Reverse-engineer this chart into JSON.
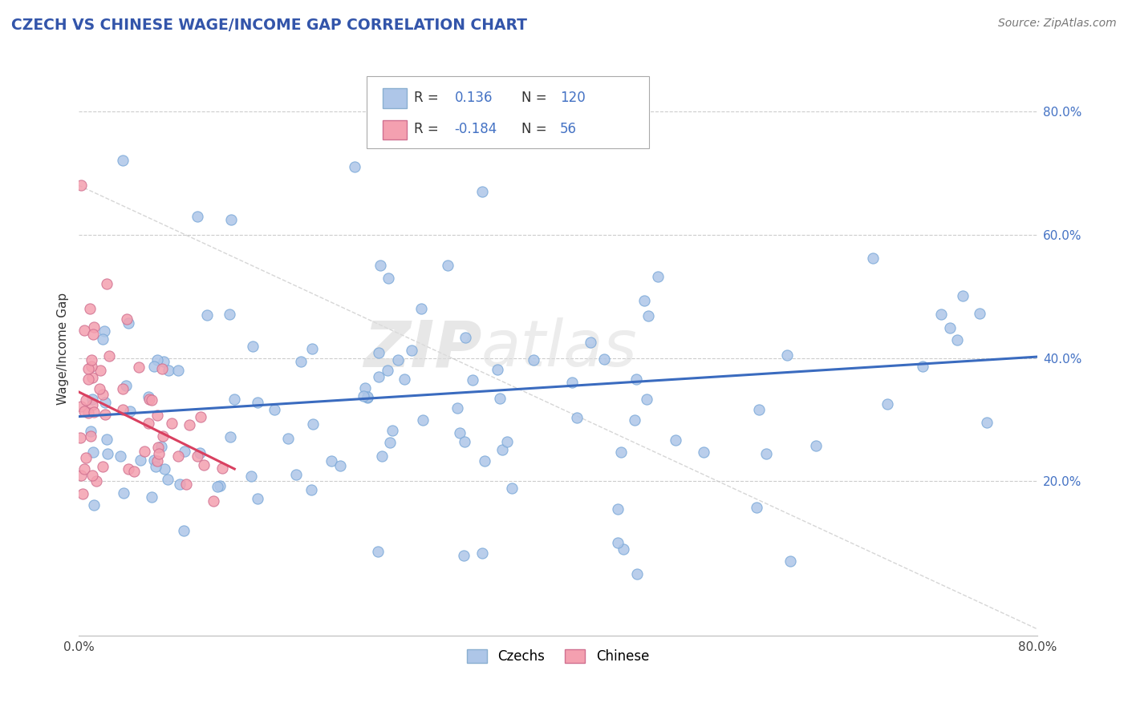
{
  "title": "CZECH VS CHINESE WAGE/INCOME GAP CORRELATION CHART",
  "source": "Source: ZipAtlas.com",
  "ylabel": "Wage/Income Gap",
  "xlim": [
    0,
    0.8
  ],
  "ylim": [
    -0.05,
    0.88
  ],
  "yticks": [
    0.2,
    0.4,
    0.6,
    0.8
  ],
  "ytick_labels": [
    "20.0%",
    "40.0%",
    "60.0%",
    "80.0%"
  ],
  "czech_color": "#aec6e8",
  "chinese_color": "#f4a0b0",
  "czech_R": 0.136,
  "czech_N": 120,
  "chinese_R": -0.184,
  "chinese_N": 56,
  "blue_line_color": "#3a6bbf",
  "pink_line_color": "#d94060",
  "gray_line_color": "#cccccc",
  "legend_blue_label": "Czechs",
  "legend_pink_label": "Chinese",
  "background_color": "#ffffff",
  "watermark_zip": "ZIP",
  "watermark_atlas": "atlas",
  "czech_scatter_seed": 12,
  "chinese_scatter_seed": 7,
  "czech_N_points": 120,
  "chinese_N_points": 56,
  "czech_line_x0": 0.0,
  "czech_line_y0": 0.305,
  "czech_line_x1": 0.8,
  "czech_line_y1": 0.402,
  "pink_line_x0": 0.0,
  "pink_line_y0": 0.345,
  "pink_line_x1": 0.13,
  "pink_line_y1": 0.22,
  "gray_line_x0": 0.0,
  "gray_line_y0": 0.68,
  "gray_line_x1": 0.8,
  "gray_line_y1": -0.04
}
